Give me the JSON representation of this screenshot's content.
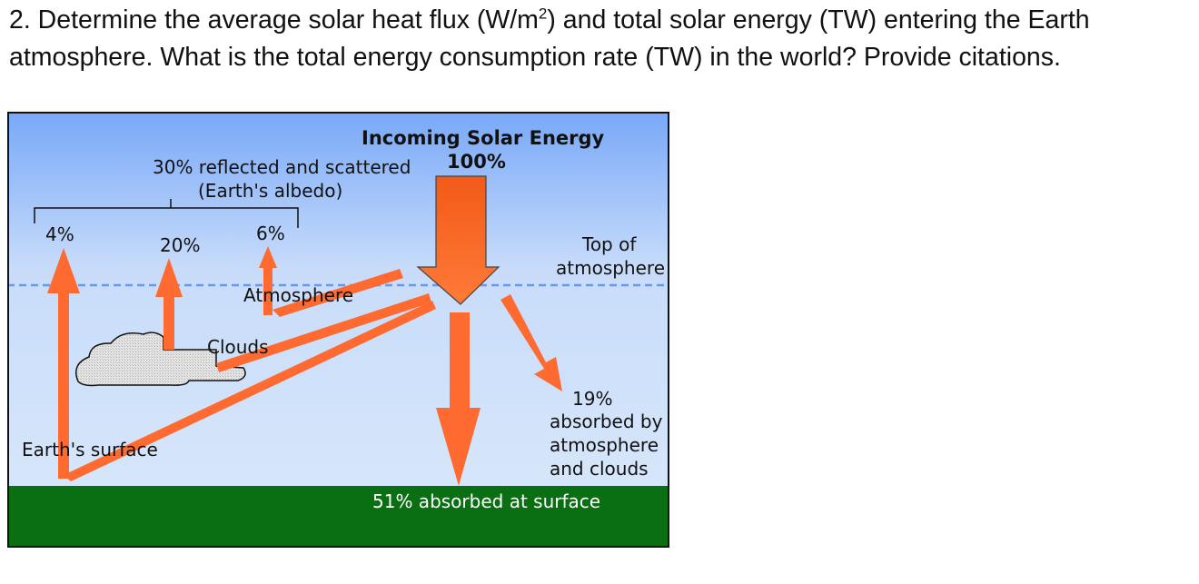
{
  "question": {
    "prefix": "2. Determine the average solar heat flux (W/m",
    "sup": "2",
    "suffix": ") and total solar energy (TW) entering the Earth atmosphere.  What is the total energy consumption rate (TW) in the world? Provide citations."
  },
  "diagram": {
    "incoming_title": "Incoming Solar Energy",
    "incoming_pct": "100%",
    "reflected_line1": "30% reflected and scattered",
    "reflected_line2": "(Earth's albedo)",
    "pct_surface_reflect": "4%",
    "pct_cloud_reflect": "20%",
    "pct_atmos_reflect": "6%",
    "top_atm_line1": "Top of",
    "top_atm_line2": "atmosphere",
    "atmosphere_label": "Atmosphere",
    "clouds_label": "Clouds",
    "absorbed_atm_line1": "19%",
    "absorbed_atm_line2": "absorbed by",
    "absorbed_atm_line3": "atmosphere",
    "absorbed_atm_line4": "and clouds",
    "surface_label": "Earth's surface",
    "absorbed_surface": "51% absorbed at surface",
    "colors": {
      "arrow": "#ff6a30",
      "ground": "#0a6e12",
      "sky_top": "#78a8f8",
      "sky_bottom": "#d6e6fa"
    }
  }
}
